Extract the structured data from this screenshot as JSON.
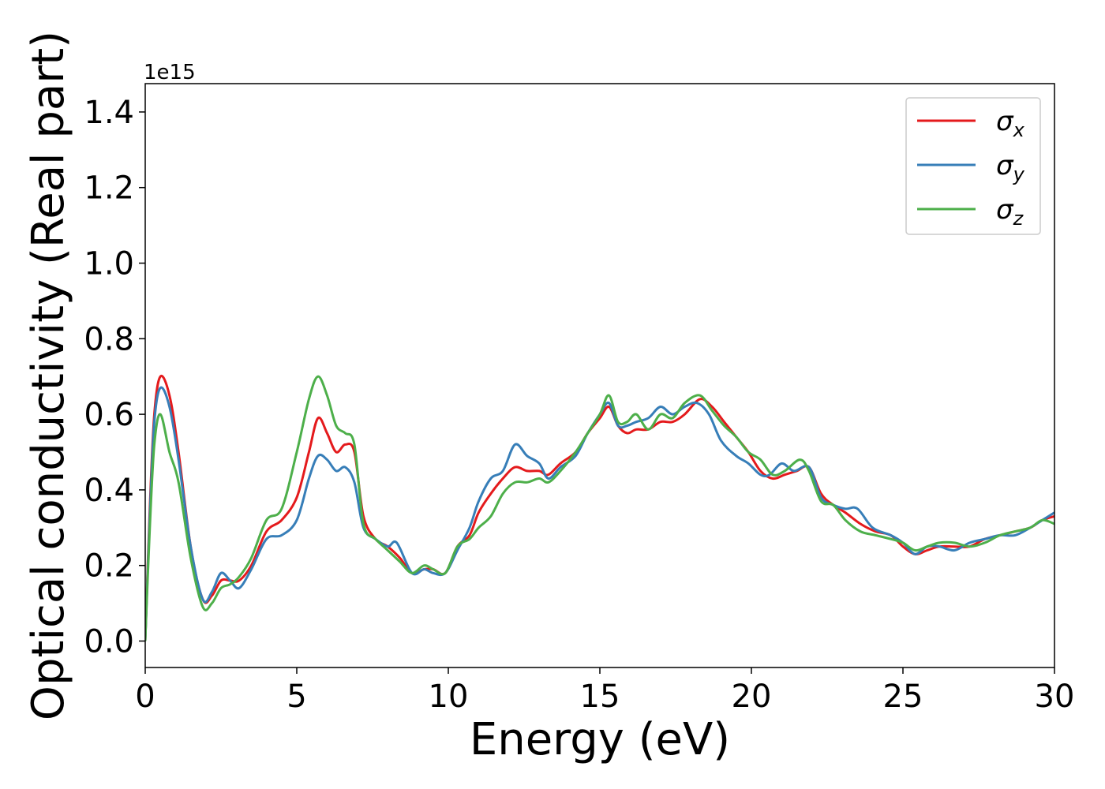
{
  "chart_data": {
    "type": "line",
    "xlabel": "Energy (eV)",
    "ylabel": "Optical conductivity (Real part)",
    "y_offset_text": "1e15",
    "xlim": [
      0,
      30
    ],
    "ylim": [
      -0.07,
      1.475
    ],
    "x_ticks": [
      0,
      5,
      10,
      15,
      20,
      25,
      30
    ],
    "x_tick_labels": [
      "0",
      "5",
      "10",
      "15",
      "20",
      "25",
      "30"
    ],
    "y_ticks": [
      0.0,
      0.2,
      0.4,
      0.6,
      0.8,
      1.0,
      1.2,
      1.4
    ],
    "y_tick_labels": [
      "0.0",
      "0.2",
      "0.4",
      "0.6",
      "0.8",
      "1.0",
      "1.2",
      "1.4"
    ],
    "grid": false,
    "legend_position": "top-right",
    "series": [
      {
        "name": "σx",
        "symbol": "σ",
        "subscript": "x",
        "color": "#e41a1c",
        "points": [
          [
            0,
            0.0
          ],
          [
            0.15,
            0.35
          ],
          [
            0.3,
            0.6
          ],
          [
            0.5,
            0.7
          ],
          [
            0.8,
            0.65
          ],
          [
            1.1,
            0.5
          ],
          [
            1.5,
            0.25
          ],
          [
            1.9,
            0.11
          ],
          [
            2.2,
            0.12
          ],
          [
            2.5,
            0.16
          ],
          [
            2.8,
            0.16
          ],
          [
            3.1,
            0.16
          ],
          [
            3.5,
            0.2
          ],
          [
            4,
            0.29
          ],
          [
            4.5,
            0.32
          ],
          [
            5,
            0.38
          ],
          [
            5.4,
            0.5
          ],
          [
            5.7,
            0.59
          ],
          [
            6,
            0.55
          ],
          [
            6.3,
            0.5
          ],
          [
            6.6,
            0.52
          ],
          [
            6.9,
            0.5
          ],
          [
            7.2,
            0.33
          ],
          [
            7.6,
            0.27
          ],
          [
            8,
            0.25
          ],
          [
            8.4,
            0.22
          ],
          [
            8.8,
            0.18
          ],
          [
            9.2,
            0.19
          ],
          [
            9.5,
            0.19
          ],
          [
            9.9,
            0.18
          ],
          [
            10.3,
            0.25
          ],
          [
            10.7,
            0.28
          ],
          [
            11.0,
            0.34
          ],
          [
            11.4,
            0.39
          ],
          [
            11.8,
            0.43
          ],
          [
            12.2,
            0.46
          ],
          [
            12.6,
            0.45
          ],
          [
            13.0,
            0.45
          ],
          [
            13.3,
            0.44
          ],
          [
            13.7,
            0.47
          ],
          [
            14.2,
            0.5
          ],
          [
            14.6,
            0.55
          ],
          [
            15.0,
            0.59
          ],
          [
            15.3,
            0.62
          ],
          [
            15.6,
            0.57
          ],
          [
            15.9,
            0.55
          ],
          [
            16.2,
            0.56
          ],
          [
            16.6,
            0.56
          ],
          [
            17.0,
            0.58
          ],
          [
            17.4,
            0.58
          ],
          [
            17.8,
            0.6
          ],
          [
            18.3,
            0.64
          ],
          [
            18.7,
            0.62
          ],
          [
            19.1,
            0.58
          ],
          [
            19.5,
            0.54
          ],
          [
            19.9,
            0.5
          ],
          [
            20.3,
            0.45
          ],
          [
            20.7,
            0.43
          ],
          [
            21.1,
            0.44
          ],
          [
            21.5,
            0.45
          ],
          [
            21.9,
            0.46
          ],
          [
            22.3,
            0.39
          ],
          [
            22.7,
            0.36
          ],
          [
            23.1,
            0.34
          ],
          [
            23.6,
            0.31
          ],
          [
            24.1,
            0.29
          ],
          [
            24.6,
            0.28
          ],
          [
            25.0,
            0.25
          ],
          [
            25.4,
            0.23
          ],
          [
            25.8,
            0.24
          ],
          [
            26.2,
            0.25
          ],
          [
            26.7,
            0.25
          ],
          [
            27.2,
            0.25
          ],
          [
            27.7,
            0.27
          ],
          [
            28.2,
            0.28
          ],
          [
            28.7,
            0.29
          ],
          [
            29.2,
            0.3
          ],
          [
            29.6,
            0.32
          ],
          [
            30.0,
            0.33
          ]
        ]
      },
      {
        "name": "σy",
        "symbol": "σ",
        "subscript": "y",
        "color": "#377eb8",
        "points": [
          [
            0,
            0.0
          ],
          [
            0.15,
            0.33
          ],
          [
            0.3,
            0.58
          ],
          [
            0.5,
            0.67
          ],
          [
            0.8,
            0.62
          ],
          [
            1.1,
            0.48
          ],
          [
            1.5,
            0.25
          ],
          [
            1.9,
            0.11
          ],
          [
            2.2,
            0.13
          ],
          [
            2.5,
            0.18
          ],
          [
            2.8,
            0.16
          ],
          [
            3.1,
            0.14
          ],
          [
            3.5,
            0.19
          ],
          [
            4,
            0.27
          ],
          [
            4.5,
            0.28
          ],
          [
            5,
            0.32
          ],
          [
            5.4,
            0.43
          ],
          [
            5.7,
            0.49
          ],
          [
            6,
            0.48
          ],
          [
            6.3,
            0.45
          ],
          [
            6.6,
            0.46
          ],
          [
            6.9,
            0.42
          ],
          [
            7.2,
            0.3
          ],
          [
            7.6,
            0.27
          ],
          [
            8,
            0.25
          ],
          [
            8.3,
            0.26
          ],
          [
            8.8,
            0.18
          ],
          [
            9.2,
            0.19
          ],
          [
            9.5,
            0.18
          ],
          [
            9.9,
            0.18
          ],
          [
            10.3,
            0.24
          ],
          [
            10.7,
            0.3
          ],
          [
            11.0,
            0.37
          ],
          [
            11.4,
            0.43
          ],
          [
            11.8,
            0.45
          ],
          [
            12.2,
            0.52
          ],
          [
            12.6,
            0.49
          ],
          [
            13.0,
            0.47
          ],
          [
            13.3,
            0.43
          ],
          [
            13.7,
            0.46
          ],
          [
            14.2,
            0.49
          ],
          [
            14.6,
            0.55
          ],
          [
            15.0,
            0.6
          ],
          [
            15.3,
            0.63
          ],
          [
            15.6,
            0.57
          ],
          [
            15.9,
            0.57
          ],
          [
            16.2,
            0.58
          ],
          [
            16.6,
            0.59
          ],
          [
            17.0,
            0.62
          ],
          [
            17.4,
            0.6
          ],
          [
            17.8,
            0.62
          ],
          [
            18.2,
            0.63
          ],
          [
            18.6,
            0.6
          ],
          [
            19.0,
            0.53
          ],
          [
            19.5,
            0.49
          ],
          [
            19.9,
            0.47
          ],
          [
            20.3,
            0.44
          ],
          [
            20.6,
            0.44
          ],
          [
            21.0,
            0.47
          ],
          [
            21.4,
            0.45
          ],
          [
            21.9,
            0.46
          ],
          [
            22.3,
            0.38
          ],
          [
            22.7,
            0.36
          ],
          [
            23.1,
            0.35
          ],
          [
            23.5,
            0.35
          ],
          [
            24.0,
            0.3
          ],
          [
            24.6,
            0.28
          ],
          [
            25.0,
            0.26
          ],
          [
            25.4,
            0.23
          ],
          [
            25.8,
            0.25
          ],
          [
            26.2,
            0.25
          ],
          [
            26.7,
            0.24
          ],
          [
            27.2,
            0.26
          ],
          [
            27.7,
            0.27
          ],
          [
            28.2,
            0.28
          ],
          [
            28.7,
            0.28
          ],
          [
            29.2,
            0.3
          ],
          [
            29.6,
            0.32
          ],
          [
            30.0,
            0.34
          ]
        ]
      },
      {
        "name": "σz",
        "symbol": "σ",
        "subscript": "z",
        "color": "#4daf4a",
        "points": [
          [
            0,
            0.0
          ],
          [
            0.15,
            0.3
          ],
          [
            0.3,
            0.52
          ],
          [
            0.5,
            0.6
          ],
          [
            0.8,
            0.5
          ],
          [
            1.1,
            0.42
          ],
          [
            1.5,
            0.22
          ],
          [
            1.9,
            0.09
          ],
          [
            2.2,
            0.1
          ],
          [
            2.5,
            0.14
          ],
          [
            2.8,
            0.15
          ],
          [
            3.1,
            0.17
          ],
          [
            3.5,
            0.22
          ],
          [
            4,
            0.32
          ],
          [
            4.5,
            0.35
          ],
          [
            5,
            0.5
          ],
          [
            5.4,
            0.64
          ],
          [
            5.7,
            0.7
          ],
          [
            6,
            0.65
          ],
          [
            6.3,
            0.57
          ],
          [
            6.6,
            0.55
          ],
          [
            6.9,
            0.52
          ],
          [
            7.2,
            0.31
          ],
          [
            7.6,
            0.27
          ],
          [
            8,
            0.24
          ],
          [
            8.4,
            0.21
          ],
          [
            8.8,
            0.18
          ],
          [
            9.2,
            0.2
          ],
          [
            9.5,
            0.19
          ],
          [
            9.9,
            0.18
          ],
          [
            10.3,
            0.25
          ],
          [
            10.7,
            0.27
          ],
          [
            11.0,
            0.3
          ],
          [
            11.4,
            0.33
          ],
          [
            11.8,
            0.39
          ],
          [
            12.2,
            0.42
          ],
          [
            12.6,
            0.42
          ],
          [
            13.0,
            0.43
          ],
          [
            13.3,
            0.42
          ],
          [
            13.7,
            0.45
          ],
          [
            14.2,
            0.5
          ],
          [
            14.6,
            0.55
          ],
          [
            15.0,
            0.6
          ],
          [
            15.3,
            0.65
          ],
          [
            15.6,
            0.58
          ],
          [
            15.9,
            0.58
          ],
          [
            16.2,
            0.6
          ],
          [
            16.6,
            0.56
          ],
          [
            17.0,
            0.6
          ],
          [
            17.4,
            0.59
          ],
          [
            17.8,
            0.63
          ],
          [
            18.3,
            0.65
          ],
          [
            18.7,
            0.61
          ],
          [
            19.1,
            0.57
          ],
          [
            19.5,
            0.54
          ],
          [
            19.9,
            0.5
          ],
          [
            20.3,
            0.48
          ],
          [
            20.7,
            0.44
          ],
          [
            21.1,
            0.45
          ],
          [
            21.6,
            0.48
          ],
          [
            21.9,
            0.45
          ],
          [
            22.3,
            0.37
          ],
          [
            22.7,
            0.36
          ],
          [
            23.1,
            0.32
          ],
          [
            23.6,
            0.29
          ],
          [
            24.1,
            0.28
          ],
          [
            24.6,
            0.27
          ],
          [
            25.0,
            0.26
          ],
          [
            25.4,
            0.24
          ],
          [
            25.8,
            0.25
          ],
          [
            26.2,
            0.26
          ],
          [
            26.7,
            0.26
          ],
          [
            27.2,
            0.25
          ],
          [
            27.7,
            0.26
          ],
          [
            28.2,
            0.28
          ],
          [
            28.7,
            0.29
          ],
          [
            29.2,
            0.3
          ],
          [
            29.6,
            0.32
          ],
          [
            30.0,
            0.31
          ]
        ]
      }
    ]
  }
}
